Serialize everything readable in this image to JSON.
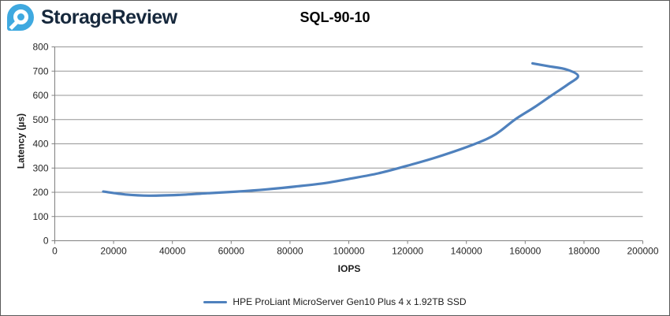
{
  "header": {
    "brand": "StorageReview",
    "logo_icon": "storagereview-bubble-icon",
    "brand_color": "#16283c",
    "logo_blue": "#3fa9e0"
  },
  "chart_data": {
    "type": "line",
    "title": "SQL-90-10",
    "xlabel": "IOPS",
    "ylabel": "Latency (µs)",
    "xlim": [
      0,
      200000
    ],
    "ylim": [
      0,
      800
    ],
    "x_ticks": [
      0,
      20000,
      40000,
      60000,
      80000,
      100000,
      120000,
      140000,
      160000,
      180000,
      200000
    ],
    "y_ticks": [
      0,
      100,
      200,
      300,
      400,
      500,
      600,
      700,
      800
    ],
    "grid": "horizontal",
    "gridline_color": "#969696",
    "axis_color": "#808080",
    "tick_label_color": "#262626",
    "legend_position": "bottom",
    "series": [
      {
        "name": "HPE ProLiant MicroServer Gen10 Plus 4 x 1.92TB SSD",
        "color": "#4F81BD",
        "points": [
          [
            16500,
            203
          ],
          [
            24000,
            191
          ],
          [
            32000,
            186
          ],
          [
            42000,
            189
          ],
          [
            52000,
            196
          ],
          [
            62000,
            203
          ],
          [
            72000,
            212
          ],
          [
            82000,
            224
          ],
          [
            92000,
            238
          ],
          [
            100000,
            255
          ],
          [
            110000,
            278
          ],
          [
            120000,
            310
          ],
          [
            130000,
            345
          ],
          [
            143000,
            400
          ],
          [
            150000,
            440
          ],
          [
            156500,
            500
          ],
          [
            163000,
            550
          ],
          [
            169000,
            600
          ],
          [
            174500,
            645
          ],
          [
            178000,
            680
          ],
          [
            174000,
            707
          ],
          [
            168000,
            720
          ],
          [
            162500,
            732
          ]
        ]
      }
    ]
  }
}
